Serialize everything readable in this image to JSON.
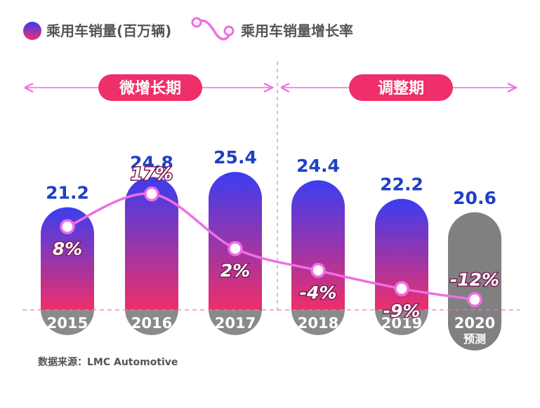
{
  "legend": {
    "sales_label": "乘用车销量(百万辆)",
    "growth_label": "乘用车销量增长率"
  },
  "periods": [
    {
      "label": "微增长期"
    },
    {
      "label": "调整期"
    }
  ],
  "source": "数据来源：LMC Automotive",
  "colors": {
    "bar_top": "#3b3df0",
    "bar_bottom": "#ee2f6a",
    "forecast_bar": "#808080",
    "year_cap": "#8a8a8a",
    "growth_line": "#f06ee4",
    "period_badge": "#ee2f6a",
    "value_text": "#1f3fc4"
  },
  "chart_data": {
    "type": "bar",
    "categories": [
      "2015",
      "2016",
      "2017",
      "2018",
      "2019",
      "2020"
    ],
    "category_notes": [
      "",
      "",
      "",
      "",
      "",
      "预测"
    ],
    "series": [
      {
        "name": "乘用车销量(百万辆)",
        "values": [
          21.2,
          24.8,
          25.4,
          24.4,
          22.2,
          20.6
        ],
        "value_labels": [
          "21.2",
          "24.8",
          "25.4",
          "24.4",
          "22.2",
          "20.6"
        ]
      },
      {
        "name": "乘用车销量增长率",
        "type": "line",
        "values": [
          8,
          17,
          2,
          -4,
          -9,
          -12
        ],
        "value_labels": [
          "8%",
          "17%",
          "2%",
          "-4%",
          "-9%",
          "-12%"
        ],
        "unit": "%"
      }
    ],
    "forecast_index": 5,
    "periods": [
      {
        "label": "微增长期",
        "categories": [
          "2015",
          "2016",
          "2017"
        ]
      },
      {
        "label": "调整期",
        "categories": [
          "2018",
          "2019",
          "2020"
        ]
      }
    ]
  }
}
